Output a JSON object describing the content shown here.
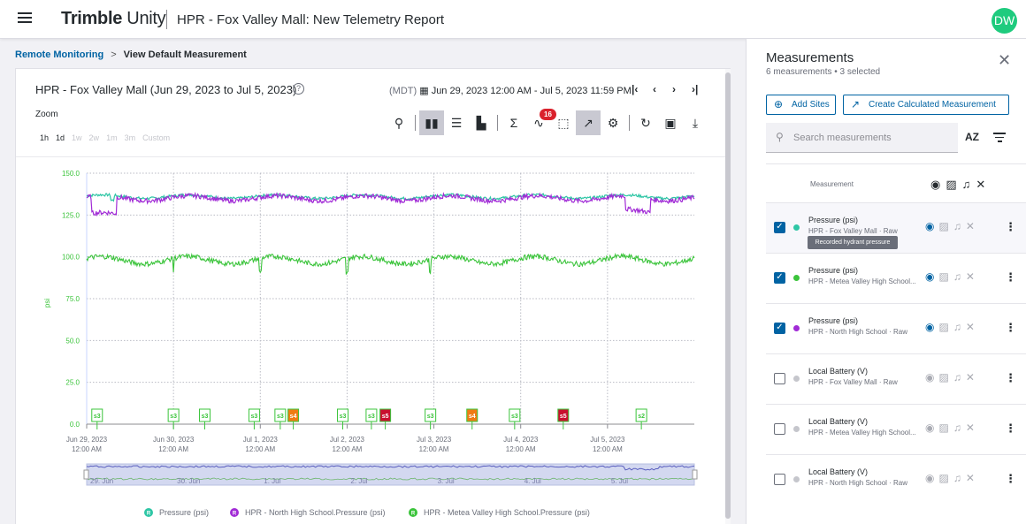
{
  "app": {
    "brand_bold": "Trimble",
    "brand_light": " Unity",
    "title": "HPR - Fox Valley Mall: New Telemetry Report",
    "avatar": "DW"
  },
  "breadcrumb": {
    "link": "Remote Monitoring",
    "separator": ">",
    "current": "View Default Measurement"
  },
  "card": {
    "title": "HPR - Fox Valley Mall (Jun 29, 2023 to Jul 5, 2023)",
    "timezone": "(MDT)",
    "date_range": "Jun 29, 2023 12:00 AM - Jul 5, 2023 11:59 PM",
    "zoom_label": "Zoom",
    "zoom_options": [
      "1h",
      "1d",
      "1w",
      "2w",
      "1m",
      "3m",
      "Custom"
    ],
    "alert_count": "16"
  },
  "chart_data": {
    "type": "line",
    "ylabel": "psi",
    "ylim": [
      0,
      150
    ],
    "yticks": [
      "150.0",
      "125.0",
      "100.0",
      "75.0",
      "50.0",
      "25.0",
      "0.0"
    ],
    "xticks": [
      {
        "date": "Jun 29, 2023",
        "time": "12:00 AM"
      },
      {
        "date": "Jun 30, 2023",
        "time": "12:00 AM"
      },
      {
        "date": "Jul 1, 2023",
        "time": "12:00 AM"
      },
      {
        "date": "Jul 2, 2023",
        "time": "12:00 AM"
      },
      {
        "date": "Jul 3, 2023",
        "time": "12:00 AM"
      },
      {
        "date": "Jul 4, 2023",
        "time": "12:00 AM"
      },
      {
        "date": "Jul 5, 2023",
        "time": "12:00 AM"
      }
    ],
    "navigator_ticks": [
      "29. Jun",
      "30. Jun",
      "1. Jul",
      "2. Jul",
      "3. Jul",
      "4. Jul",
      "5. Jul"
    ],
    "series": [
      {
        "name": "Pressure (psi)",
        "color": "#2ec6a5",
        "level": 136
      },
      {
        "name": "HPR - North High School.Pressure (psi)",
        "color": "#a12bd6",
        "level": 135
      },
      {
        "name": "HPR - Metea Valley High School.Pressure (psi)",
        "color": "#3bc43b",
        "level": 98
      }
    ],
    "events": [
      {
        "label": "s3",
        "day": 0.12,
        "kind": "s3"
      },
      {
        "label": "s3",
        "day": 1.0,
        "kind": "s3"
      },
      {
        "label": "s3",
        "day": 1.36,
        "kind": "s3"
      },
      {
        "label": "s3",
        "day": 1.93,
        "kind": "s3"
      },
      {
        "label": "s3",
        "day": 2.23,
        "kind": "s3"
      },
      {
        "label": "s4",
        "day": 2.38,
        "kind": "s4"
      },
      {
        "label": "s3",
        "day": 2.95,
        "kind": "s3"
      },
      {
        "label": "s3",
        "day": 3.28,
        "kind": "s3"
      },
      {
        "label": "s5",
        "day": 3.44,
        "kind": "s5"
      },
      {
        "label": "s3",
        "day": 3.96,
        "kind": "s3"
      },
      {
        "label": "s4",
        "day": 4.44,
        "kind": "s4"
      },
      {
        "label": "s3",
        "day": 4.93,
        "kind": "s3"
      },
      {
        "label": "s5",
        "day": 5.49,
        "kind": "s5"
      },
      {
        "label": "s2",
        "day": 6.39,
        "kind": "s2"
      }
    ]
  },
  "legend": [
    {
      "marker": "R",
      "label": "Pressure (psi)",
      "color": "#2ec6a5"
    },
    {
      "marker": "R",
      "label": "HPR - North High School.Pressure (psi)",
      "color": "#a12bd6"
    },
    {
      "marker": "R",
      "label": "HPR - Metea Valley High School.Pressure (psi)",
      "color": "#3bc43b"
    }
  ],
  "panel": {
    "title": "Measurements",
    "subtitle": "6 measurements • 3 selected",
    "add_sites": "Add Sites",
    "create_calc": "Create Calculated Measurement",
    "search_placeholder": "Search measurements",
    "sort_label": "AZ",
    "column_header": "Measurement",
    "tooltip": "Recorded hydrant pressure",
    "rows": [
      {
        "name": "Pressure (psi)",
        "source": "HPR - Fox Valley Mall · Raw",
        "checked": true,
        "dot": "#2ec6a5",
        "visible": true
      },
      {
        "name": "Pressure (psi)",
        "source": "HPR - Metea Valley High School...",
        "checked": true,
        "dot": "#3bc43b",
        "visible": true
      },
      {
        "name": "Pressure (psi)",
        "source": "HPR - North High School · Raw",
        "checked": true,
        "dot": "#a12bd6",
        "visible": true
      },
      {
        "name": "Local Battery (V)",
        "source": "HPR - Fox Valley Mall · Raw",
        "checked": false,
        "dot": "#c5c6cc",
        "visible": false
      },
      {
        "name": "Local Battery (V)",
        "source": "HPR - Metea Valley High School...",
        "checked": false,
        "dot": "#c5c6cc",
        "visible": false
      },
      {
        "name": "Local Battery (V)",
        "source": "HPR - North High School · Raw",
        "checked": false,
        "dot": "#c5c6cc",
        "visible": false
      }
    ]
  }
}
